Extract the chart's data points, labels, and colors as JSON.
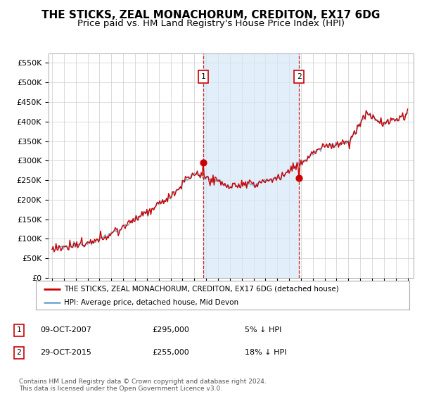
{
  "title": "THE STICKS, ZEAL MONACHORUM, CREDITON, EX17 6DG",
  "subtitle": "Price paid vs. HM Land Registry's House Price Index (HPI)",
  "ylim": [
    0,
    575000
  ],
  "yticks": [
    0,
    50000,
    100000,
    150000,
    200000,
    250000,
    300000,
    350000,
    400000,
    450000,
    500000,
    550000
  ],
  "legend_line1": "THE STICKS, ZEAL MONACHORUM, CREDITON, EX17 6DG (detached house)",
  "legend_line2": "HPI: Average price, detached house, Mid Devon",
  "annotation1_date": "09-OCT-2007",
  "annotation1_price": "£295,000",
  "annotation1_pct": "5% ↓ HPI",
  "annotation1_year": 2007.77,
  "annotation2_date": "29-OCT-2015",
  "annotation2_price": "£255,000",
  "annotation2_pct": "18% ↓ HPI",
  "annotation2_year": 2015.83,
  "hpi_color": "#7bafd4",
  "price_color": "#cc0000",
  "dashed_color": "#cc0000",
  "fill_color": "#d6e8f7",
  "background_plot": "#ffffff",
  "grid_color": "#cccccc",
  "footer": "Contains HM Land Registry data © Crown copyright and database right 2024.\nThis data is licensed under the Open Government Licence v3.0.",
  "title_fontsize": 11,
  "subtitle_fontsize": 9.5
}
